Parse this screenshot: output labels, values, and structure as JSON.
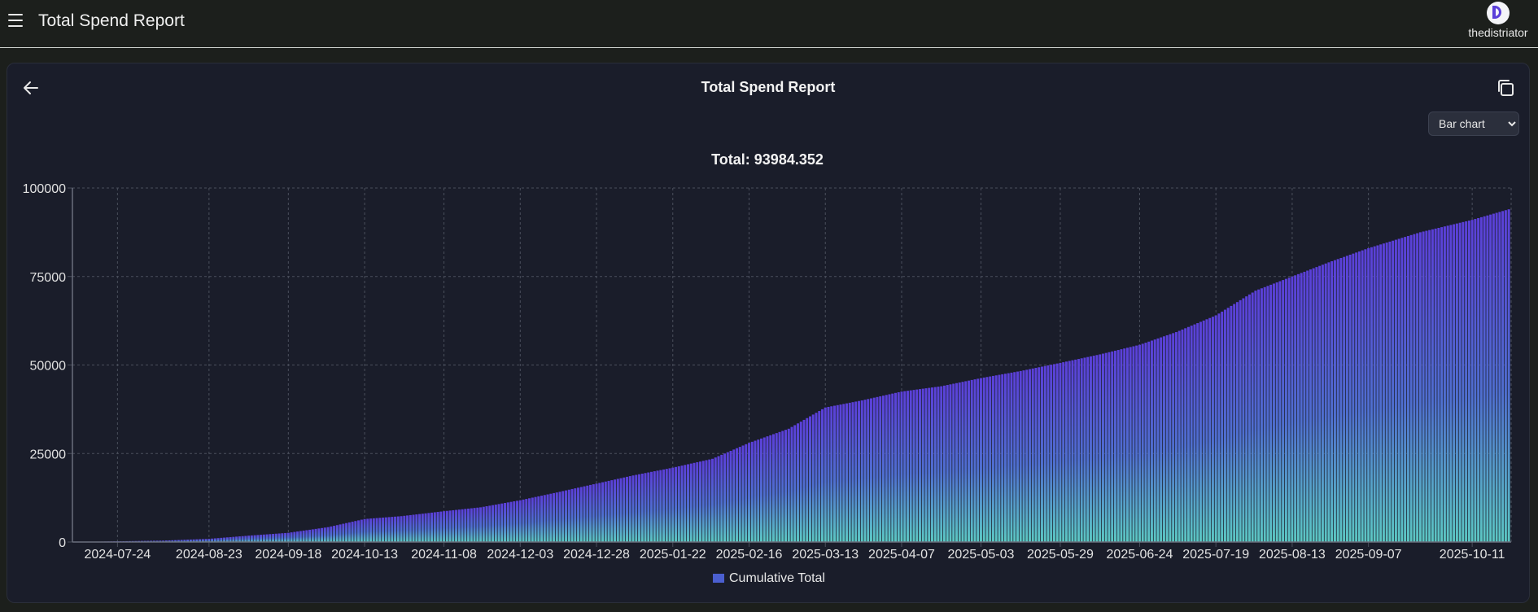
{
  "header": {
    "app_title": "Total Spend Report",
    "username": "thedistriator",
    "menu_icon": "hamburger-menu-icon",
    "avatar_icon": "distriator-logo-icon"
  },
  "report": {
    "title": "Total Spend Report",
    "back_icon": "arrow-left-icon",
    "copy_icon": "copy-icon",
    "chart_type_select": {
      "selected": "Bar chart",
      "options": [
        "Bar chart"
      ]
    }
  },
  "colors": {
    "bar_top": "#5b3fd9",
    "bar_bottom": "#5cc8c4",
    "grid": "#4a4f5c",
    "legend_swatch": "#4b5fd0"
  },
  "chart_data": {
    "type": "bar",
    "title": "Total: 93984.352",
    "xlabel": "",
    "ylabel": "",
    "ylim": [
      0,
      100000
    ],
    "yticks": [
      0,
      25000,
      50000,
      75000,
      100000
    ],
    "xtick_labels": [
      "2024-07-24",
      "2024-08-23",
      "2024-09-18",
      "2024-10-13",
      "2024-11-08",
      "2024-12-03",
      "2024-12-28",
      "2025-01-22",
      "2025-02-16",
      "2025-03-13",
      "2025-04-07",
      "2025-05-03",
      "2025-05-29",
      "2025-06-24",
      "2025-07-19",
      "2025-08-13",
      "2025-09-07",
      "2025-10-11"
    ],
    "grid": true,
    "legend_position": "bottom",
    "series": [
      {
        "name": "Cumulative Total",
        "points": [
          [
            "2024-07-10",
            0
          ],
          [
            "2024-07-24",
            200
          ],
          [
            "2024-08-08",
            400
          ],
          [
            "2024-08-23",
            900
          ],
          [
            "2024-09-05",
            1800
          ],
          [
            "2024-09-18",
            2600
          ],
          [
            "2024-10-01",
            4200
          ],
          [
            "2024-10-13",
            6500
          ],
          [
            "2024-10-25",
            7300
          ],
          [
            "2024-11-08",
            8700
          ],
          [
            "2024-11-20",
            9800
          ],
          [
            "2024-12-03",
            11800
          ],
          [
            "2024-12-15",
            14000
          ],
          [
            "2024-12-28",
            16500
          ],
          [
            "2025-01-09",
            18800
          ],
          [
            "2025-01-22",
            21000
          ],
          [
            "2025-02-04",
            23500
          ],
          [
            "2025-02-16",
            28000
          ],
          [
            "2025-03-01",
            32000
          ],
          [
            "2025-03-13",
            38000
          ],
          [
            "2025-03-25",
            40000
          ],
          [
            "2025-04-07",
            42500
          ],
          [
            "2025-04-20",
            44000
          ],
          [
            "2025-05-03",
            46300
          ],
          [
            "2025-05-16",
            48300
          ],
          [
            "2025-05-29",
            50600
          ],
          [
            "2025-06-11",
            53000
          ],
          [
            "2025-06-24",
            55700
          ],
          [
            "2025-07-06",
            59300
          ],
          [
            "2025-07-19",
            64000
          ],
          [
            "2025-08-01",
            71000
          ],
          [
            "2025-08-13",
            75000
          ],
          [
            "2025-08-25",
            79000
          ],
          [
            "2025-09-07",
            83000
          ],
          [
            "2025-09-24",
            87500
          ],
          [
            "2025-10-11",
            91000
          ],
          [
            "2025-10-23",
            93984.352
          ]
        ]
      }
    ]
  }
}
